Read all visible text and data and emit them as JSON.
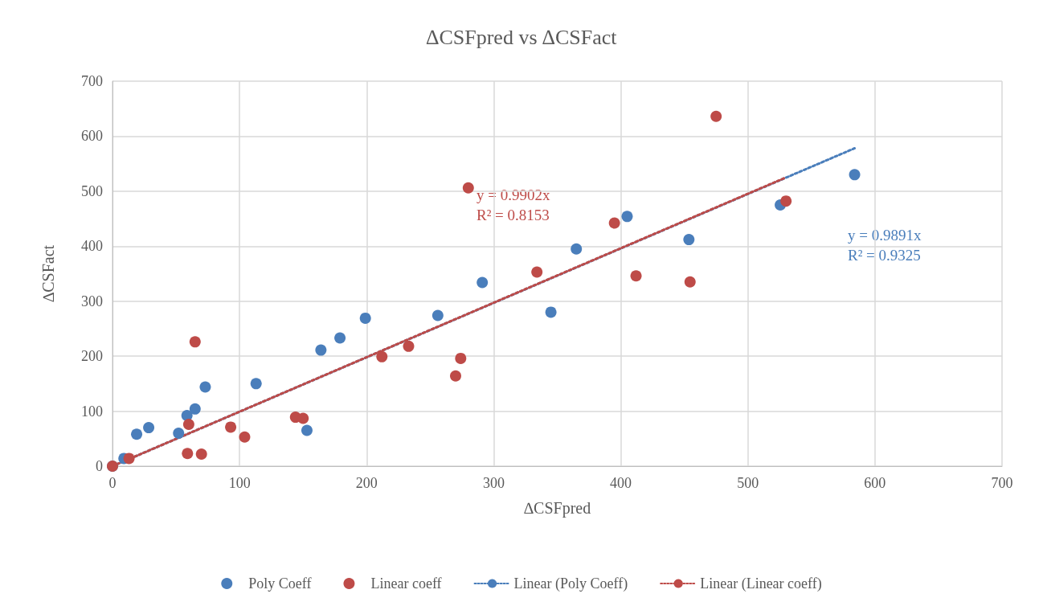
{
  "chart_data": {
    "type": "scatter",
    "title": "∆CSFpred vs ∆CSFact",
    "xlabel": "∆CSFpred",
    "ylabel": "∆CSFact",
    "xlim": [
      0,
      700
    ],
    "xticks": [
      0,
      100,
      200,
      300,
      400,
      500,
      600,
      700
    ],
    "ylim": [
      0,
      700
    ],
    "yticks": [
      0,
      100,
      200,
      300,
      400,
      500,
      600,
      700
    ],
    "grid": true,
    "legend": "bottom",
    "marker": "circle",
    "series": [
      {
        "name": "Poly Coeff",
        "color": "#4a7ebb",
        "x": [
          0,
          9,
          19,
          28.5,
          52,
          58.6,
          65,
          73,
          113,
          153,
          164,
          179,
          199,
          256,
          291,
          345,
          365,
          405,
          453.6,
          525.5,
          584
        ],
        "values": [
          0,
          14,
          58,
          70,
          60,
          92,
          104,
          144,
          150,
          65,
          211,
          233,
          269,
          274,
          334,
          280,
          395,
          454,
          412,
          475,
          530
        ]
      },
      {
        "name": "Linear coeff",
        "color": "#be4b48",
        "x": [
          0,
          13,
          59,
          60,
          65,
          70,
          93,
          104,
          144,
          150,
          212,
          233,
          270,
          274,
          280,
          334,
          395,
          412,
          454.5,
          475,
          530
        ],
        "values": [
          0,
          14,
          23,
          76,
          226,
          22,
          71,
          53,
          89,
          87,
          199,
          218,
          164,
          196,
          506,
          353,
          442,
          346,
          335,
          636,
          482
        ]
      },
      {
        "name": "Linear (Poly Coeff)",
        "type": "line",
        "color": "#4a7ebb",
        "line_style": "dotted",
        "marker": "none",
        "x": [
          0,
          584
        ],
        "values": [
          0,
          578
        ]
      },
      {
        "name": "Linear (Linear coeff)",
        "type": "line",
        "color": "#be4b48",
        "line_style": "dotted",
        "marker": "none",
        "x": [
          0,
          530
        ],
        "values": [
          0,
          525
        ]
      }
    ],
    "annotations": [
      "y = 0.9902x\nR² = 0.8153",
      "y = 0.9891x\nR² = 0.9325"
    ]
  }
}
